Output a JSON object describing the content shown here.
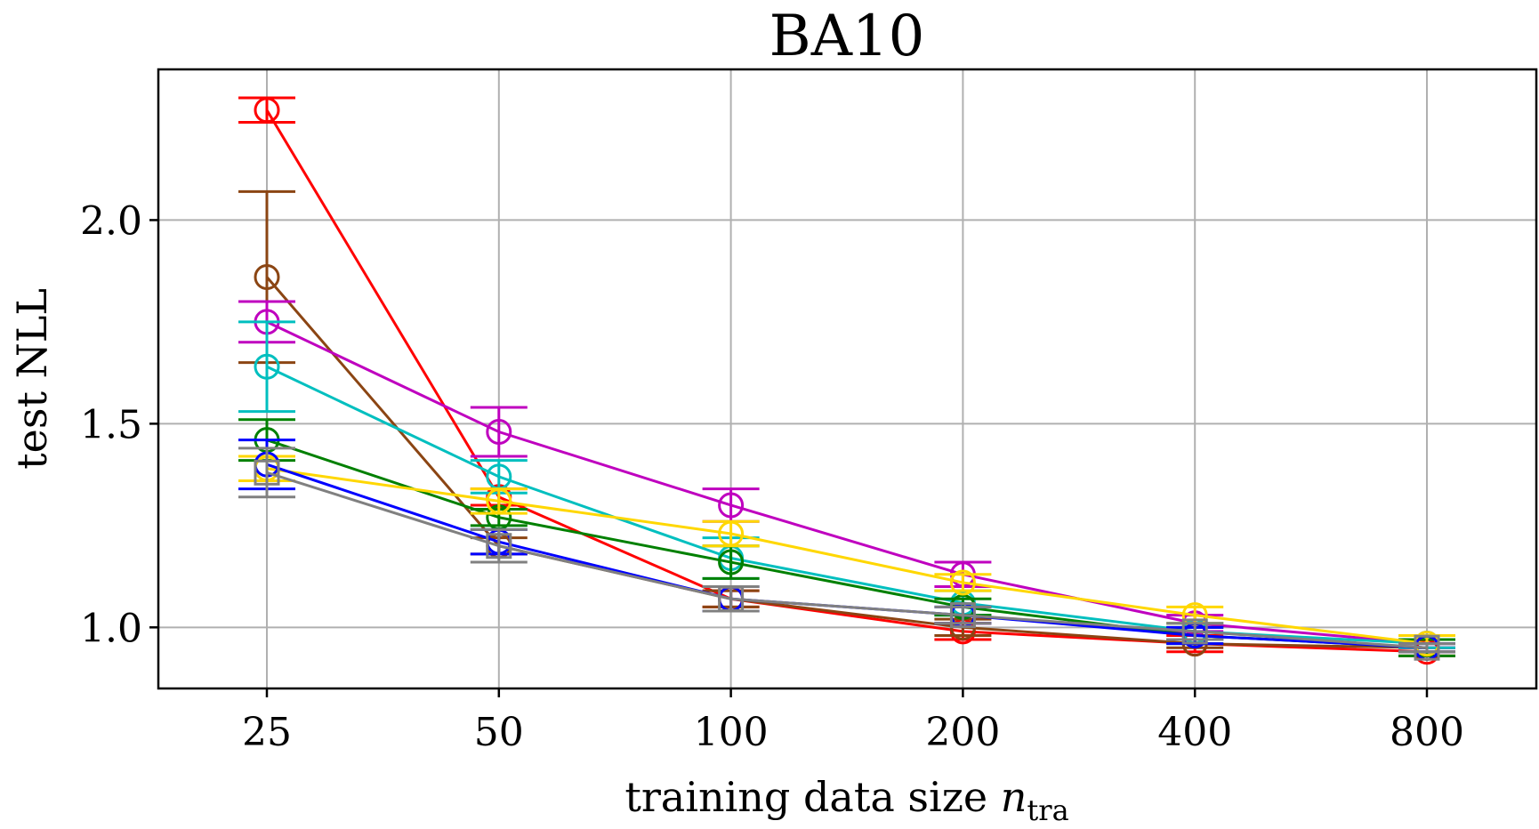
{
  "chart_data": {
    "type": "line",
    "title": "BA10",
    "xlabel": "training data size",
    "xlabel_var": "n",
    "xlabel_sub": "tra",
    "ylabel": "test NLL",
    "categories": [
      "25",
      "50",
      "100",
      "200",
      "400",
      "800"
    ],
    "ylim": [
      0.85,
      2.37
    ],
    "yticks": [
      1.0,
      1.5,
      2.0
    ],
    "ytick_labels": [
      "1.0",
      "1.5",
      "2.0"
    ],
    "grid": true,
    "series": [
      {
        "name": "red",
        "color": "#ff0000",
        "marker": "circle",
        "values": [
          2.27,
          1.32,
          1.07,
          0.99,
          0.96,
          0.94
        ],
        "err": [
          0.03,
          0.02,
          0.02,
          0.02,
          0.02,
          0.01
        ]
      },
      {
        "name": "brown",
        "color": "#8b4513",
        "marker": "circle",
        "values": [
          1.86,
          1.2,
          1.07,
          1.0,
          0.96,
          0.95
        ],
        "err": [
          0.21,
          0.02,
          0.02,
          0.02,
          0.01,
          0.01
        ]
      },
      {
        "name": "magenta",
        "color": "#bf00bf",
        "marker": "circle",
        "values": [
          1.75,
          1.48,
          1.3,
          1.13,
          1.01,
          0.96
        ],
        "err": [
          0.05,
          0.06,
          0.04,
          0.03,
          0.02,
          0.01
        ]
      },
      {
        "name": "cyan",
        "color": "#00bfbf",
        "marker": "circle",
        "values": [
          1.64,
          1.37,
          1.17,
          1.06,
          0.99,
          0.96
        ],
        "err": [
          0.11,
          0.04,
          0.05,
          0.03,
          0.02,
          0.01
        ]
      },
      {
        "name": "green",
        "color": "#008000",
        "marker": "circle",
        "values": [
          1.46,
          1.27,
          1.16,
          1.05,
          0.98,
          0.95
        ],
        "err": [
          0.05,
          0.02,
          0.04,
          0.02,
          0.02,
          0.02
        ]
      },
      {
        "name": "gold",
        "color": "#ffd700",
        "marker": "circle",
        "values": [
          1.39,
          1.31,
          1.23,
          1.11,
          1.03,
          0.96
        ],
        "err": [
          0.03,
          0.03,
          0.03,
          0.02,
          0.02,
          0.02
        ]
      },
      {
        "name": "blue",
        "color": "#0000ff",
        "marker": "circle",
        "values": [
          1.4,
          1.21,
          1.07,
          1.03,
          0.98,
          0.95
        ],
        "err": [
          0.06,
          0.03,
          0.03,
          0.02,
          0.02,
          0.01
        ]
      },
      {
        "name": "gray",
        "color": "#808080",
        "marker": "square",
        "values": [
          1.38,
          1.2,
          1.07,
          1.03,
          0.99,
          0.95
        ],
        "err": [
          0.06,
          0.04,
          0.03,
          0.02,
          0.02,
          0.01
        ]
      }
    ]
  }
}
